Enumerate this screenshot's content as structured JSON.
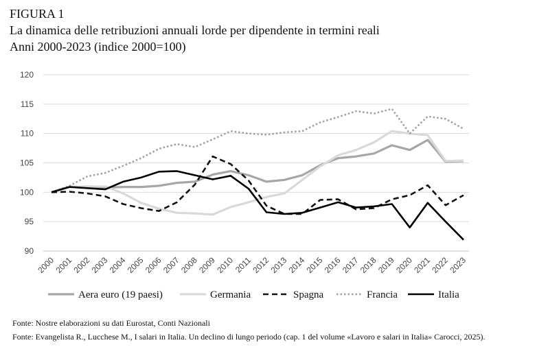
{
  "header": {
    "figure_label": "FIGURA 1",
    "title": "La dinamica delle retribuzioni annuali lorde per dipendente in termini reali",
    "subtitle": "Anni 2000-2023 (indice 2000=100)"
  },
  "sources": [
    "Fonte: Nostre elaborazioni su dati Eurostat, Conti Nazionali",
    "Fonte: Evangelista R., Lucchese M., I salari in Italia. Un declino di lungo periodo (cap. 1 del volume «Lavoro e salari in Italia» Carocci, 2025)."
  ],
  "chart_data": {
    "type": "line",
    "categories": [
      "2000",
      "2001",
      "2002",
      "2003",
      "2004",
      "2005",
      "2006",
      "2007",
      "2008",
      "2009",
      "2010",
      "2011",
      "2012",
      "2013",
      "2014",
      "2015",
      "2016",
      "2017",
      "2018",
      "2019",
      "2020",
      "2021",
      "2022",
      "2023"
    ],
    "ylim": [
      90,
      120
    ],
    "yticks": [
      90,
      95,
      100,
      105,
      110,
      115,
      120
    ],
    "grid": true,
    "legend_position": "bottom",
    "series": [
      {
        "name": "Aera euro (19 paesi)",
        "color": "#a6a6a6",
        "style": "solid-thick",
        "values": [
          100,
          100.9,
          101.0,
          100.8,
          100.9,
          100.9,
          101.1,
          101.6,
          101.8,
          103.0,
          103.6,
          102.9,
          101.8,
          102.1,
          102.9,
          104.6,
          105.8,
          106.1,
          106.6,
          108.0,
          107.2,
          108.9,
          105.2,
          105.3
        ]
      },
      {
        "name": "Germania",
        "color": "#d9d9d9",
        "style": "solid-thick",
        "values": [
          100,
          100.9,
          101.0,
          101.0,
          99.8,
          98.2,
          97.2,
          96.5,
          96.4,
          96.2,
          97.5,
          98.3,
          99.2,
          99.8,
          102.1,
          104.4,
          106.3,
          107.2,
          108.5,
          110.4,
          110.0,
          109.7,
          105.3,
          105.4
        ]
      },
      {
        "name": "Spagna",
        "color": "#111111",
        "style": "dashed",
        "values": [
          100,
          100.1,
          99.8,
          99.3,
          98.0,
          97.3,
          96.8,
          98.3,
          101.3,
          106.1,
          104.8,
          102.0,
          97.7,
          96.3,
          96.3,
          98.7,
          98.8,
          97.1,
          97.3,
          98.8,
          99.5,
          101.2,
          97.8,
          99.5
        ]
      },
      {
        "name": "Francia",
        "color": "#a0a0a0",
        "style": "dotted",
        "values": [
          100,
          101.1,
          102.7,
          103.3,
          104.5,
          105.8,
          107.4,
          108.2,
          107.7,
          109.0,
          110.4,
          110.0,
          109.8,
          110.2,
          110.4,
          111.9,
          112.8,
          113.8,
          113.4,
          114.2,
          110.0,
          112.9,
          112.5,
          110.8
        ]
      },
      {
        "name": "Italia",
        "color": "#000000",
        "style": "solid",
        "values": [
          100,
          100.9,
          100.7,
          100.5,
          101.8,
          102.5,
          103.5,
          103.6,
          102.9,
          102.2,
          102.8,
          100.6,
          96.6,
          96.3,
          96.5,
          97.4,
          98.3,
          97.4,
          97.6,
          98.0,
          94.0,
          98.2,
          95.0,
          91.9
        ]
      }
    ]
  }
}
